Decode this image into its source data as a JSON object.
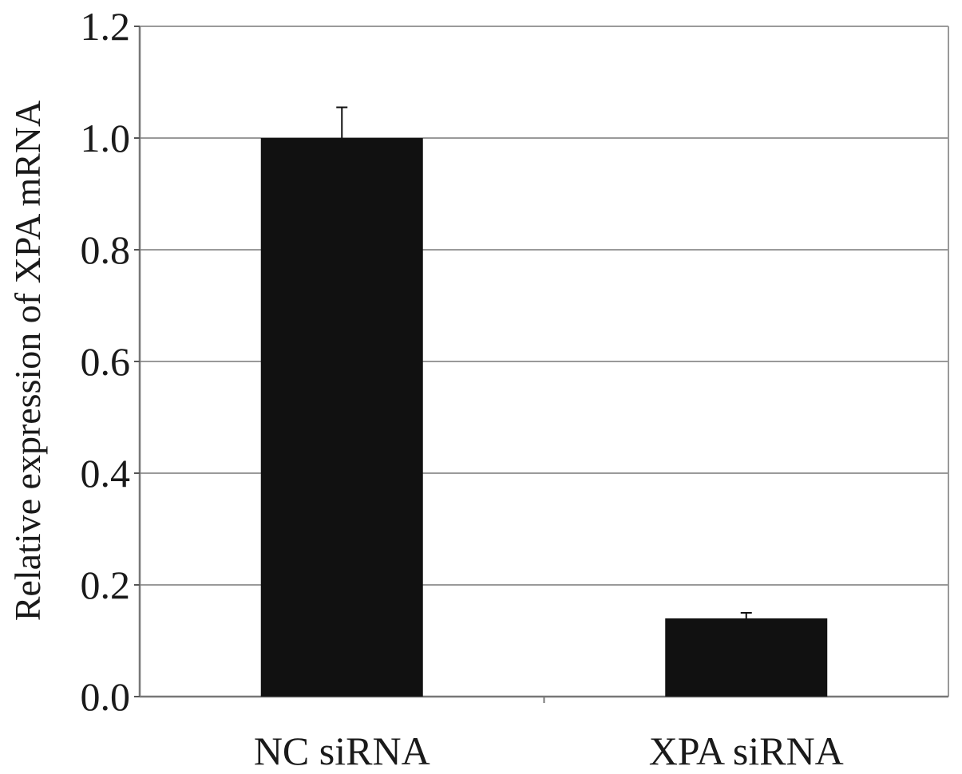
{
  "chart_data": {
    "type": "bar",
    "title": "",
    "xlabel": "",
    "ylabel": "Relative expression of XPA mRNA",
    "categories": [
      "NC siRNA",
      "XPA siRNA"
    ],
    "values": [
      1.0,
      0.14
    ],
    "errors": [
      0.055,
      0.01
    ],
    "ylim": [
      0,
      1.2
    ],
    "yticks": [
      "0.0",
      "0.2",
      "0.4",
      "0.6",
      "0.8",
      "1.0",
      "1.2"
    ],
    "grid": true,
    "bar_color": "#111111",
    "grid_color": "#9a9a9a"
  }
}
